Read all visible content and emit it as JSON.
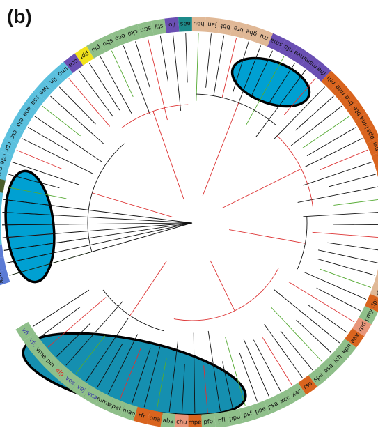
{
  "panel_label": "(b)",
  "colors": {
    "cyan": "#5bc0de",
    "dark_green": "#4a5e2a",
    "purple": "#6a4fb3",
    "blue": "#5b7bd5",
    "yellow": "#f2e31a",
    "sage": "#8fbf8a",
    "teal": "#1d8a8a",
    "tan": "#e0b896",
    "orange": "#d9641e",
    "salmon": "#e8967a",
    "highlight_fill": "#00a0d2",
    "highlight_fill_dark": "#158fb0",
    "branch_red": "#dd3333",
    "branch_green": "#55aa33",
    "branch_black": "#111111"
  },
  "leaves": [
    {
      "label": "pce",
      "color": "blue",
      "text": "#111111"
    },
    {
      "label": "mxa",
      "color": "blue",
      "text": "#111111"
    },
    {
      "label": "ppd",
      "color": "blue",
      "text": "#111111"
    },
    {
      "label": "cac",
      "color": "cyan",
      "text": "#111111"
    },
    {
      "label": "dsy",
      "color": "cyan",
      "text": "#111111"
    },
    {
      "label": "drm",
      "color": "cyan",
      "text": "#111111"
    },
    {
      "label": "amt",
      "color": "cyan",
      "text": "#111111"
    },
    {
      "label": "fnu",
      "color": "dark_green",
      "text": "#111111"
    },
    {
      "label": "cpe",
      "color": "cyan",
      "text": "#111111"
    },
    {
      "label": "cde",
      "color": "cyan",
      "text": "#111111"
    },
    {
      "label": "cpr",
      "color": "cyan",
      "text": "#111111"
    },
    {
      "label": "ctc",
      "color": "cyan",
      "text": "#111111"
    },
    {
      "label": "efa",
      "color": "cyan",
      "text": "#111111"
    },
    {
      "label": "aoe",
      "color": "cyan",
      "text": "#111111"
    },
    {
      "label": "ssa",
      "color": "cyan",
      "text": "#111111"
    },
    {
      "label": "lwe",
      "color": "cyan",
      "text": "#111111"
    },
    {
      "label": "lin",
      "color": "cyan",
      "text": "#111111"
    },
    {
      "label": "lmo",
      "color": "cyan",
      "text": "#111111"
    },
    {
      "label": "cca",
      "color": "purple",
      "text": "#111111"
    },
    {
      "label": "ppr",
      "color": "yellow",
      "text": "#111111"
    },
    {
      "label": "plu",
      "color": "sage",
      "text": "#111111"
    },
    {
      "label": "sbo",
      "color": "sage",
      "text": "#111111"
    },
    {
      "label": "eco",
      "color": "sage",
      "text": "#111111"
    },
    {
      "label": "cko",
      "color": "sage",
      "text": "#111111"
    },
    {
      "label": "stm",
      "color": "sage",
      "text": "#111111"
    },
    {
      "label": "sty",
      "color": "sage",
      "text": "#111111"
    },
    {
      "label": "ilo",
      "color": "purple",
      "text": "#111111"
    },
    {
      "label": "aas",
      "color": "teal",
      "text": "#111111"
    },
    {
      "label": "hau",
      "color": "tan",
      "text": "#111111"
    },
    {
      "label": "jan",
      "color": "tan",
      "text": "#111111"
    },
    {
      "label": "bbt",
      "color": "tan",
      "text": "#111111"
    },
    {
      "label": "bra",
      "color": "tan",
      "text": "#111111"
    },
    {
      "label": "gbe",
      "color": "tan",
      "text": "#111111"
    },
    {
      "label": "rru",
      "color": "tan",
      "text": "#111111"
    },
    {
      "label": "sma",
      "color": "purple",
      "text": "#111111"
    },
    {
      "label": "nfa",
      "color": "purple",
      "text": "#111111"
    },
    {
      "label": "mva",
      "color": "purple",
      "text": "#111111"
    },
    {
      "label": "msm",
      "color": "purple",
      "text": "#111111"
    },
    {
      "label": "rha",
      "color": "purple",
      "text": "#111111"
    },
    {
      "label": "reh",
      "color": "orange",
      "text": "#111111"
    },
    {
      "label": "rme",
      "color": "orange",
      "text": "#111111"
    },
    {
      "label": "bxe",
      "color": "orange",
      "text": "#111111"
    },
    {
      "label": "bte",
      "color": "orange",
      "text": "#111111"
    },
    {
      "label": "bma",
      "color": "orange",
      "text": "#111111"
    },
    {
      "label": "bps",
      "color": "orange",
      "text": "#111111"
    },
    {
      "label": "bvi",
      "color": "orange",
      "text": "#111111"
    },
    {
      "label": "bur",
      "color": "orange",
      "text": "#111111"
    },
    {
      "label": "bam",
      "color": "orange",
      "text": "#111111"
    },
    {
      "label": "bcn",
      "color": "orange",
      "text": "#111111"
    },
    {
      "label": "byi",
      "color": "orange",
      "text": "#111111"
    },
    {
      "label": "azc",
      "color": "tan",
      "text": "#111111"
    },
    {
      "label": "rau",
      "color": "tan",
      "text": "#111111"
    },
    {
      "label": "bja",
      "color": "tan",
      "text": "#111111"
    },
    {
      "label": "rpa",
      "color": "tan",
      "text": "#111111"
    },
    {
      "label": "rpb",
      "color": "tan",
      "text": "#111111"
    },
    {
      "label": "rpc",
      "color": "tan",
      "text": "#111111"
    },
    {
      "label": "rne",
      "color": "tan",
      "text": "#111111"
    },
    {
      "label": "dpr",
      "color": "orange",
      "text": "#111111"
    },
    {
      "label": "pmy",
      "color": "sage",
      "text": "#111111"
    },
    {
      "label": "rpd",
      "color": "salmon",
      "text": "#111111"
    },
    {
      "label": "aav",
      "color": "orange",
      "text": "#111111"
    },
    {
      "label": "kpn",
      "color": "sage",
      "text": "#111111"
    },
    {
      "label": "lch",
      "color": "sage",
      "text": "#111111"
    },
    {
      "label": "asa",
      "color": "sage",
      "text": "#111111"
    },
    {
      "label": "spe",
      "color": "sage",
      "text": "#111111"
    },
    {
      "label": "rso",
      "color": "orange",
      "text": "#111111"
    },
    {
      "label": "xac",
      "color": "sage",
      "text": "#111111"
    },
    {
      "label": "xcc",
      "color": "sage",
      "text": "#111111"
    },
    {
      "label": "psa",
      "color": "sage",
      "text": "#111111"
    },
    {
      "label": "pae",
      "color": "sage",
      "text": "#111111"
    },
    {
      "label": "psf",
      "color": "sage",
      "text": "#111111"
    },
    {
      "label": "ppu",
      "color": "sage",
      "text": "#111111"
    },
    {
      "label": "pfl",
      "color": "sage",
      "text": "#111111"
    },
    {
      "label": "pfo",
      "color": "sage",
      "text": "#111111"
    },
    {
      "label": "mpe",
      "color": "orange",
      "text": "#111111"
    },
    {
      "label": "chu",
      "color": "salmon",
      "text": "#111111"
    },
    {
      "label": "aba",
      "color": "sage",
      "text": "#111111"
    },
    {
      "label": "ona",
      "color": "orange",
      "text": "#111111"
    },
    {
      "label": "rfr",
      "color": "orange",
      "text": "#111111"
    },
    {
      "label": "maq",
      "color": "sage",
      "text": "#111111"
    },
    {
      "label": "pat",
      "color": "sage",
      "text": "#111111"
    },
    {
      "label": "mmw",
      "color": "sage",
      "text": "#111111"
    },
    {
      "label": "vca",
      "color": "sage",
      "text": "#3a3aa8"
    },
    {
      "label": "vej",
      "color": "sage",
      "text": "#3a3aa8"
    },
    {
      "label": "vex",
      "color": "sage",
      "text": "#3a3aa8"
    },
    {
      "label": "alg",
      "color": "sage",
      "text": "#e02020"
    },
    {
      "label": "pin",
      "color": "sage",
      "text": "#111111"
    },
    {
      "label": "vme",
      "color": "sage",
      "text": "#111111"
    },
    {
      "label": "vfc",
      "color": "sage",
      "text": "#3a3aa8"
    },
    {
      "label": "vfi",
      "color": "sage",
      "text": "#3a3aa8"
    }
  ],
  "highlights": [
    {
      "name": "highlight-top-right",
      "fill": "highlight_fill"
    },
    {
      "name": "highlight-left",
      "fill": "highlight_fill"
    },
    {
      "name": "highlight-bottom",
      "fill": "highlight_fill_dark"
    }
  ]
}
